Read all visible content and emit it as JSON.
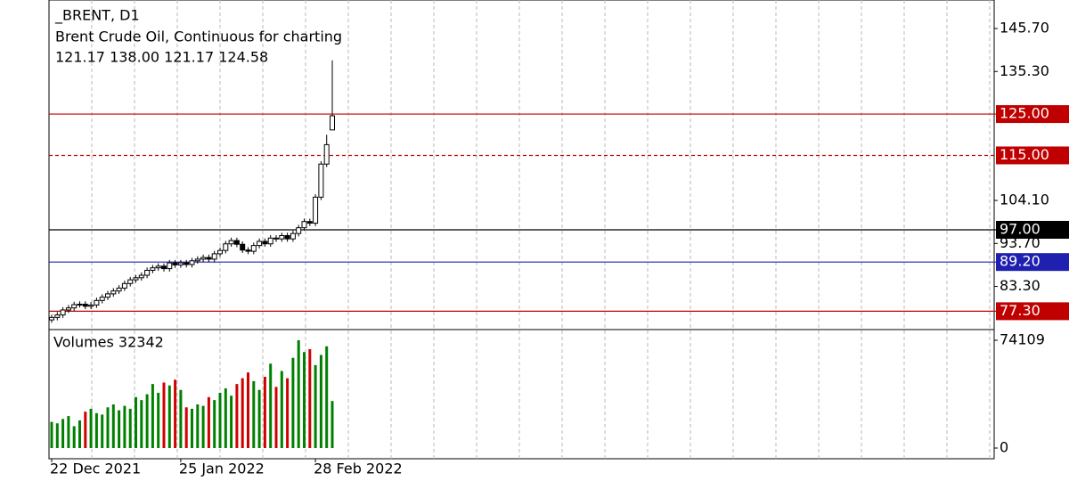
{
  "chart_data": {
    "type": "candlestick",
    "symbol": "_BRENT, D1",
    "title": "Brent Crude Oil, Continuous for charting",
    "ohlc_text": "121.17 138.00 121.17 124.58",
    "categories": [
      "22 Dec 2021",
      null,
      null,
      null,
      null,
      null,
      null,
      null,
      null,
      null,
      null,
      null,
      null,
      null,
      null,
      null,
      null,
      null,
      null,
      null,
      null,
      null,
      null,
      "25 Jan 2022",
      null,
      null,
      null,
      null,
      null,
      null,
      null,
      null,
      null,
      null,
      null,
      null,
      null,
      null,
      null,
      null,
      null,
      null,
      null,
      null,
      null,
      null,
      null,
      "28 Feb 2022",
      null,
      null,
      null
    ],
    "open": [
      75.2,
      75.8,
      76.4,
      77.6,
      78.1,
      78.9,
      79.0,
      78.5,
      78.8,
      79.9,
      80.7,
      81.5,
      82.2,
      82.9,
      84.0,
      84.9,
      85.4,
      86.0,
      87.2,
      87.8,
      88.2,
      87.6,
      89.0,
      88.5,
      89.0,
      88.6,
      89.5,
      89.9,
      90.3,
      89.9,
      91.2,
      92.0,
      93.6,
      94.4,
      93.5,
      92.1,
      91.8,
      93.2,
      94.2,
      93.6,
      95.0,
      94.8,
      95.6,
      94.8,
      96.1,
      97.5,
      99.0,
      98.6,
      104.9,
      112.9,
      121.17
    ],
    "high": [
      76.5,
      77.1,
      78.3,
      78.8,
      79.6,
      79.7,
      79.7,
      79.5,
      80.6,
      81.4,
      82.2,
      82.9,
      83.6,
      84.7,
      85.6,
      86.1,
      86.7,
      87.9,
      88.5,
      88.9,
      88.9,
      89.7,
      89.7,
      89.7,
      89.7,
      90.2,
      90.6,
      91.0,
      91.0,
      91.9,
      92.7,
      94.3,
      95.1,
      95.1,
      94.2,
      92.8,
      93.9,
      94.9,
      94.9,
      95.7,
      95.7,
      96.3,
      96.3,
      96.8,
      98.2,
      99.7,
      99.7,
      105.6,
      113.6,
      120.0,
      138.0
    ],
    "low": [
      74.5,
      75.1,
      75.7,
      76.9,
      77.4,
      78.2,
      77.8,
      77.8,
      78.1,
      79.2,
      80.0,
      80.8,
      81.5,
      82.2,
      83.3,
      84.2,
      84.7,
      85.3,
      86.5,
      87.1,
      86.9,
      86.9,
      87.8,
      87.8,
      87.9,
      87.9,
      88.8,
      89.2,
      89.2,
      89.2,
      90.5,
      91.3,
      92.9,
      92.8,
      91.4,
      91.1,
      91.1,
      92.5,
      92.9,
      92.9,
      94.1,
      94.1,
      94.1,
      94.1,
      95.4,
      96.8,
      97.9,
      97.9,
      104.2,
      112.2,
      121.17
    ],
    "close": [
      75.8,
      76.4,
      77.6,
      78.1,
      78.9,
      79.0,
      78.5,
      78.8,
      79.9,
      80.7,
      81.5,
      82.2,
      82.9,
      84.0,
      84.9,
      85.4,
      86.0,
      87.2,
      87.8,
      88.2,
      87.6,
      89.0,
      88.5,
      89.0,
      88.6,
      89.5,
      89.9,
      90.3,
      89.9,
      91.2,
      92.0,
      93.6,
      94.4,
      93.5,
      92.1,
      91.8,
      93.2,
      94.2,
      93.6,
      95.0,
      94.8,
      95.6,
      94.8,
      96.1,
      97.5,
      99.0,
      98.6,
      104.9,
      112.9,
      117.6,
      124.58
    ],
    "ylim": [
      72.86,
      152.6
    ],
    "yticks": [
      {
        "value": 145.7,
        "label": "145.70"
      },
      {
        "value": 135.3,
        "label": "135.30"
      },
      {
        "value": 104.1,
        "label": "104.10"
      },
      {
        "value": 93.7,
        "label": "93.70"
      },
      {
        "value": 83.3,
        "label": "83.30"
      }
    ],
    "levels": [
      {
        "value": 125,
        "label": "125.00",
        "color": "#c00000",
        "dashed": false
      },
      {
        "value": 115,
        "label": "115.00",
        "color": "#c00000",
        "dashed": true
      },
      {
        "value": 97,
        "label": "97.00",
        "color": "#000000",
        "dashed": false
      },
      {
        "value": 89.2,
        "label": "89.20",
        "color": "#1f1fb0",
        "dashed": false
      },
      {
        "value": 77.3,
        "label": "77.30",
        "color": "#c00000",
        "dashed": false
      }
    ],
    "volume_title": "Volumes 32342",
    "volumes": [
      18000,
      17000,
      20000,
      22000,
      15000,
      19000,
      25000,
      27000,
      24000,
      23000,
      28000,
      30000,
      26000,
      29000,
      27000,
      35000,
      33000,
      37000,
      44000,
      38000,
      45000,
      43000,
      47000,
      40000,
      28000,
      27000,
      30000,
      29000,
      35000,
      33000,
      38000,
      41000,
      36000,
      44000,
      48000,
      52000,
      46000,
      40000,
      49000,
      58000,
      42000,
      53000,
      48000,
      62000,
      74109,
      66000,
      68000,
      57000,
      64000,
      70000,
      32342
    ],
    "volume_ylim": [
      0,
      74109
    ],
    "volume_yticks": [
      0,
      74109
    ],
    "up_color": "#008000",
    "down_color": "#d00000",
    "grid": true
  }
}
